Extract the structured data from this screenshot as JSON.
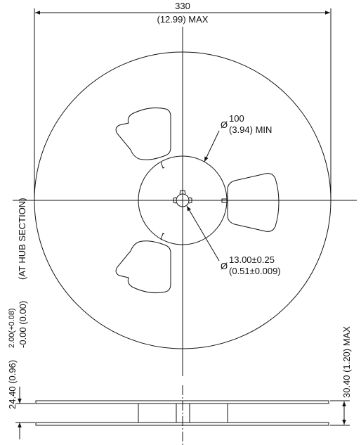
{
  "drawing": {
    "outer_dim": {
      "value": "330",
      "value_sub": "(12.99) MAX"
    },
    "hub_dim": {
      "symbol": "Ø",
      "value": "100",
      "value_sub": "(3.94) MIN"
    },
    "arbor_dim": {
      "symbol": "Ø",
      "value": "13.00±0.25",
      "value_sub": "(0.51±0.009)"
    },
    "inner_width_dim": {
      "main": "24.40 (0.96)",
      "tol_upper": "2.00(+0.08)",
      "tol_lower": "-0.00 (0.00)",
      "note": "(AT HUB SECTION)"
    },
    "overall_width_dim": {
      "value": "30.40 (1.20) MAX"
    },
    "line_color": "#111111"
  }
}
